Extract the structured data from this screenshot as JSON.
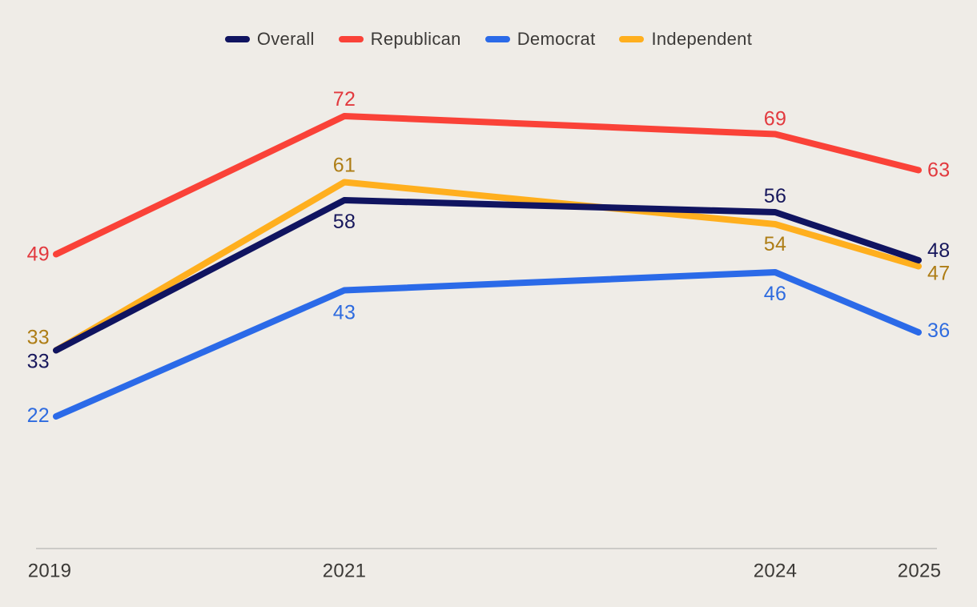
{
  "background_color": "#efece7",
  "axis_line_color": "#cccac7",
  "text_color": "#3c3a38",
  "chart_data": {
    "type": "line",
    "title": "",
    "xlabel": "",
    "ylabel": "",
    "x": [
      2019,
      2021,
      2024,
      2025
    ],
    "x_tick_labels": [
      "2019",
      "2021",
      "2024",
      "2025"
    ],
    "ylim": [
      0,
      90
    ],
    "grid": false,
    "legend_position": "top-center",
    "series": [
      {
        "name": "Overall",
        "color": "#101460",
        "label_color": "#17175c",
        "values": [
          33,
          58,
          56,
          48
        ]
      },
      {
        "name": "Republican",
        "color": "#fa4238",
        "label_color": "#e2393e",
        "values": [
          49,
          72,
          69,
          63
        ]
      },
      {
        "name": "Democrat",
        "color": "#2b6ae8",
        "label_color": "#2e6bdf",
        "values": [
          22,
          43,
          46,
          36
        ]
      },
      {
        "name": "Independent",
        "color": "#ffaf1e",
        "label_color": "#ae7d15",
        "values": [
          33,
          61,
          54,
          47
        ]
      }
    ]
  }
}
